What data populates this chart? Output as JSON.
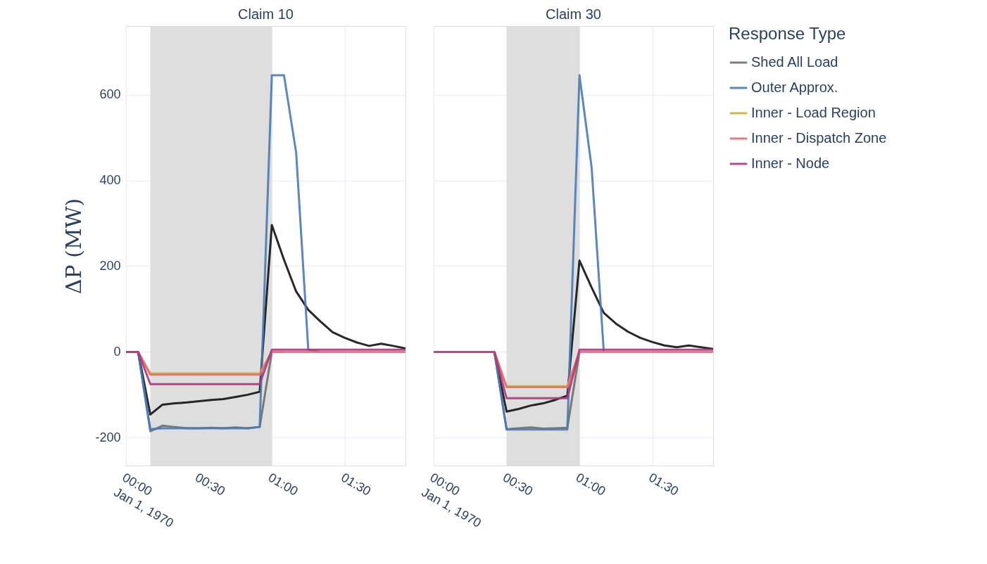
{
  "chart_data": [
    {
      "type": "line",
      "title": "Claim 10",
      "ylabel": "ΔP (MW)",
      "x": [
        "1970-01-01T00:00",
        "1970-01-01T00:05",
        "1970-01-01T00:10",
        "1970-01-01T00:15",
        "1970-01-01T00:20",
        "1970-01-01T00:25",
        "1970-01-01T00:30",
        "1970-01-01T00:35",
        "1970-01-01T00:40",
        "1970-01-01T00:45",
        "1970-01-01T00:50",
        "1970-01-01T00:55",
        "1970-01-01T01:00",
        "1970-01-01T01:05",
        "1970-01-01T01:10",
        "1970-01-01T01:15",
        "1970-01-01T01:20",
        "1970-01-01T01:25",
        "1970-01-01T01:30",
        "1970-01-01T01:35",
        "1970-01-01T01:40",
        "1970-01-01T01:45",
        "1970-01-01T01:50",
        "1970-01-01T01:55"
      ],
      "series": [
        {
          "name": "Shed All Load",
          "color": "#6e6e6e",
          "values": [
            null,
            0,
            -185,
            -172,
            -175,
            -178,
            -178,
            -177,
            -178,
            -176,
            -178,
            -175,
            0,
            null,
            null,
            null,
            null,
            null,
            null,
            null,
            null,
            null,
            null,
            null
          ]
        },
        {
          "color": "#111111",
          "values": [
            null,
            0,
            -146,
            -123,
            -120,
            -118,
            -115,
            -112,
            -110,
            -105,
            -100,
            -93,
            296,
            215,
            141,
            98,
            71,
            46,
            33,
            22,
            14,
            19,
            14,
            8
          ]
        },
        {
          "name": "Outer Approx.",
          "color": "#4a7ab5",
          "values": [
            null,
            0,
            -180,
            -178,
            -178,
            -178,
            -178,
            -178,
            -178,
            -178,
            -178,
            -175,
            645,
            645,
            465,
            5,
            0,
            null,
            null,
            null,
            null,
            null,
            null,
            null
          ]
        },
        {
          "name": "Inner - Load Region",
          "color": "#c9b13c",
          "values": [
            null,
            0,
            -50,
            -50,
            -50,
            -50,
            -50,
            -50,
            -50,
            -50,
            -50,
            -50,
            0,
            0,
            null,
            null,
            null,
            null,
            null,
            null,
            null,
            null,
            null,
            null
          ]
        },
        {
          "name": "Inner - Dispatch Zone",
          "color": "#f0686f",
          "values": [
            0,
            0,
            -53,
            -53,
            -53,
            -53,
            -53,
            -53,
            -53,
            -53,
            -53,
            -53,
            0,
            0,
            0,
            0,
            0,
            0,
            0,
            0,
            0,
            0,
            0,
            0
          ]
        },
        {
          "name": "Inner - Node",
          "color": "#b0347f",
          "values": [
            0,
            0,
            -75,
            -75,
            -75,
            -75,
            -75,
            -75,
            -75,
            -75,
            -75,
            -75,
            5,
            5,
            5,
            5,
            5,
            5,
            5,
            5,
            5,
            5,
            5,
            5
          ]
        }
      ],
      "xlim": [
        "1970-01-01T00:00",
        "1970-01-01T01:55"
      ],
      "xticks": [
        {
          "value": "1970-01-01T00:00",
          "label": "00:00\nJan 1, 1970"
        },
        {
          "value": "1970-01-01T00:30",
          "label": "00:30"
        },
        {
          "value": "1970-01-01T01:00",
          "label": "01:00"
        },
        {
          "value": "1970-01-01T01:30",
          "label": "01:30"
        }
      ],
      "ylim": [
        -265,
        760
      ],
      "yticks": [
        -200,
        0,
        200,
        400,
        600
      ],
      "bands": [
        {
          "axis": "x",
          "from": "1970-01-01T00:10",
          "to": "1970-01-01T01:00",
          "color": "#dcdcdc"
        }
      ],
      "grid": true,
      "legend": "right",
      "marker": "none",
      "line_style": "solid"
    },
    {
      "type": "line",
      "title": "Claim 30",
      "x": [
        "1970-01-01T00:00",
        "1970-01-01T00:05",
        "1970-01-01T00:10",
        "1970-01-01T00:15",
        "1970-01-01T00:20",
        "1970-01-01T00:25",
        "1970-01-01T00:30",
        "1970-01-01T00:35",
        "1970-01-01T00:40",
        "1970-01-01T00:45",
        "1970-01-01T00:50",
        "1970-01-01T00:55",
        "1970-01-01T01:00",
        "1970-01-01T01:05",
        "1970-01-01T01:10",
        "1970-01-01T01:15",
        "1970-01-01T01:20",
        "1970-01-01T01:25",
        "1970-01-01T01:30",
        "1970-01-01T01:35",
        "1970-01-01T01:40",
        "1970-01-01T01:45",
        "1970-01-01T01:50",
        "1970-01-01T01:55"
      ],
      "series": [
        {
          "name": "Shed All Load",
          "color": "#6e6e6e",
          "values": [
            null,
            null,
            null,
            null,
            null,
            0,
            -180,
            -178,
            -176,
            -179,
            -178,
            -177,
            0,
            null,
            null,
            null,
            null,
            null,
            null,
            null,
            null,
            null,
            null,
            null
          ]
        },
        {
          "color": "#111111",
          "values": [
            null,
            null,
            null,
            null,
            null,
            0,
            -139,
            -133,
            -125,
            -120,
            -112,
            -102,
            213,
            150,
            91,
            66,
            47,
            33,
            23,
            15,
            11,
            15,
            11,
            7
          ]
        },
        {
          "name": "Outer Approx.",
          "color": "#4a7ab5",
          "values": [
            null,
            null,
            null,
            null,
            null,
            0,
            -181,
            -181,
            -181,
            -181,
            -181,
            -181,
            645,
            430,
            0,
            null,
            null,
            null,
            null,
            null,
            null,
            null,
            null,
            null
          ]
        },
        {
          "name": "Inner - Load Region",
          "color": "#c9b13c",
          "values": [
            null,
            null,
            null,
            null,
            null,
            0,
            -80,
            -80,
            -80,
            -80,
            -80,
            -80,
            0,
            null,
            null,
            null,
            null,
            null,
            null,
            null,
            null,
            null,
            null,
            null
          ]
        },
        {
          "name": "Inner - Dispatch Zone",
          "color": "#f0686f",
          "values": [
            null,
            null,
            null,
            null,
            null,
            0,
            -82,
            -82,
            -82,
            -82,
            -82,
            -82,
            0,
            0,
            0,
            0,
            0,
            0,
            0,
            0,
            0,
            0,
            0,
            0
          ]
        },
        {
          "name": "Inner - Node",
          "color": "#b0347f",
          "values": [
            0,
            0,
            0,
            0,
            0,
            0,
            -108,
            -108,
            -108,
            -108,
            -108,
            -108,
            5,
            5,
            5,
            5,
            5,
            5,
            5,
            5,
            5,
            5,
            5,
            5
          ]
        }
      ],
      "xlim": [
        "1970-01-01T00:00",
        "1970-01-01T01:55"
      ],
      "xticks": [
        {
          "value": "1970-01-01T00:00",
          "label": "00:00\nJan 1, 1970"
        },
        {
          "value": "1970-01-01T00:30",
          "label": "00:30"
        },
        {
          "value": "1970-01-01T01:00",
          "label": "01:00"
        },
        {
          "value": "1970-01-01T01:30",
          "label": "01:30"
        }
      ],
      "ylim": [
        -265,
        760
      ],
      "yticks": [
        -200,
        0,
        200,
        400,
        600
      ],
      "bands": [
        {
          "axis": "x",
          "from": "1970-01-01T00:30",
          "to": "1970-01-01T01:00",
          "color": "#dcdcdc"
        }
      ],
      "grid": true,
      "legend": "right",
      "legend_title": "Response Type",
      "tick_labels": "x",
      "marker": "none",
      "line_style": "solid"
    }
  ]
}
